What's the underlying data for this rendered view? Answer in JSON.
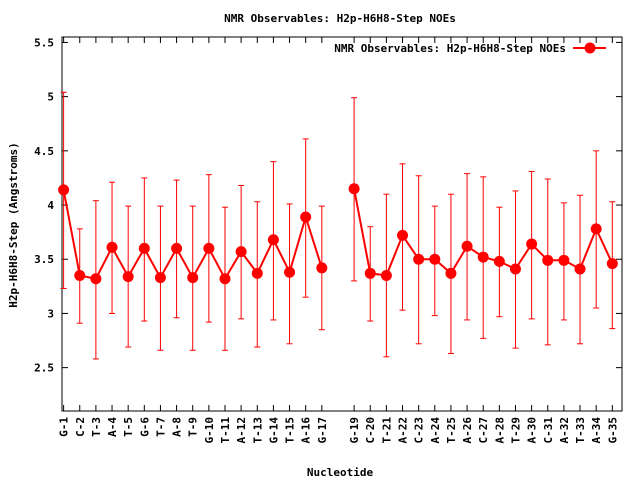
{
  "chart_data": {
    "type": "line",
    "title": "NMR Observables: H2p-H6H8-Step NOEs",
    "xlabel": "Nucleotide",
    "ylabel": "H2p-H6H8-Step (Angstroms)",
    "ylim": [
      2.1,
      5.55
    ],
    "yticks": [
      "2.5",
      "3",
      "3.5",
      "4",
      "4.5",
      "5",
      "5.5"
    ],
    "legend_position": "top-right",
    "grid": false,
    "colors": {
      "series": "#ff0000",
      "axis": "#000000"
    },
    "categories": [
      "G-1",
      "C-2",
      "T-3",
      "A-4",
      "T-5",
      "G-6",
      "T-7",
      "A-8",
      "T-9",
      "G-10",
      "T-11",
      "A-12",
      "T-13",
      "G-14",
      "T-15",
      "A-16",
      "G-17",
      "G-19",
      "C-20",
      "T-21",
      "A-22",
      "C-23",
      "A-24",
      "T-25",
      "A-26",
      "C-27",
      "A-28",
      "T-29",
      "A-30",
      "C-31",
      "A-32",
      "T-33",
      "A-34",
      "G-35"
    ],
    "positions": [
      1,
      2,
      3,
      4,
      5,
      6,
      7,
      8,
      9,
      10,
      11,
      12,
      13,
      14,
      15,
      16,
      17,
      19,
      20,
      21,
      22,
      23,
      24,
      25,
      26,
      27,
      28,
      29,
      30,
      31,
      32,
      33,
      34,
      35
    ],
    "series": [
      {
        "name": "NMR Observables: H2p-H6H8-Step NOEs",
        "values": [
          4.14,
          3.35,
          3.32,
          3.61,
          3.34,
          3.6,
          3.33,
          3.6,
          3.33,
          3.6,
          3.32,
          3.57,
          3.37,
          3.68,
          3.38,
          3.89,
          3.42,
          4.15,
          3.37,
          3.35,
          3.72,
          3.5,
          3.5,
          3.37,
          3.62,
          3.52,
          3.48,
          3.41,
          3.64,
          3.49,
          3.49,
          3.41,
          3.78,
          3.46
        ],
        "err_low": [
          3.23,
          2.91,
          2.58,
          3.0,
          2.69,
          2.93,
          2.66,
          2.96,
          2.66,
          2.92,
          2.66,
          2.95,
          2.69,
          2.94,
          2.72,
          3.15,
          2.85,
          3.3,
          2.93,
          2.6,
          3.03,
          2.72,
          2.98,
          2.63,
          2.94,
          2.77,
          2.97,
          2.68,
          2.95,
          2.71,
          2.94,
          2.72,
          3.05,
          2.86
        ],
        "err_high": [
          5.04,
          3.78,
          4.04,
          4.21,
          3.99,
          4.25,
          3.99,
          4.23,
          3.99,
          4.28,
          3.98,
          4.18,
          4.03,
          4.4,
          4.01,
          4.61,
          3.99,
          4.99,
          3.8,
          4.1,
          4.38,
          4.27,
          3.99,
          4.1,
          4.29,
          4.26,
          3.98,
          4.13,
          4.31,
          4.24,
          4.02,
          4.09,
          4.5,
          4.03
        ]
      }
    ]
  }
}
